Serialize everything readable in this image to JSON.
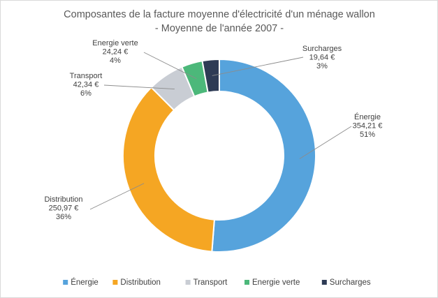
{
  "chart_data": {
    "type": "pie",
    "donut": true,
    "title": "Composantes de la facture moyenne d'électricité d'un ménage wallon",
    "subtitle": "- Moyenne de l'année 2007 -",
    "slices": [
      {
        "name": "Énergie",
        "value": 354.21,
        "value_label": "354,21 €",
        "percent_label": "51%",
        "color": "#56A3DC"
      },
      {
        "name": "Distribution",
        "value": 250.97,
        "value_label": "250,97 €",
        "percent_label": "36%",
        "color": "#F5A623"
      },
      {
        "name": "Transport",
        "value": 42.34,
        "value_label": "42,34 €",
        "percent_label": "6%",
        "color": "#C9CDD4"
      },
      {
        "name": "Energie verte",
        "value": 24.24,
        "value_label": "24,24 €",
        "percent_label": "4%",
        "color": "#4CB87A"
      },
      {
        "name": "Surcharges",
        "value": 19.64,
        "value_label": "19,64 €",
        "percent_label": "3%",
        "color": "#2E3B55"
      }
    ],
    "legend": "bottom"
  }
}
